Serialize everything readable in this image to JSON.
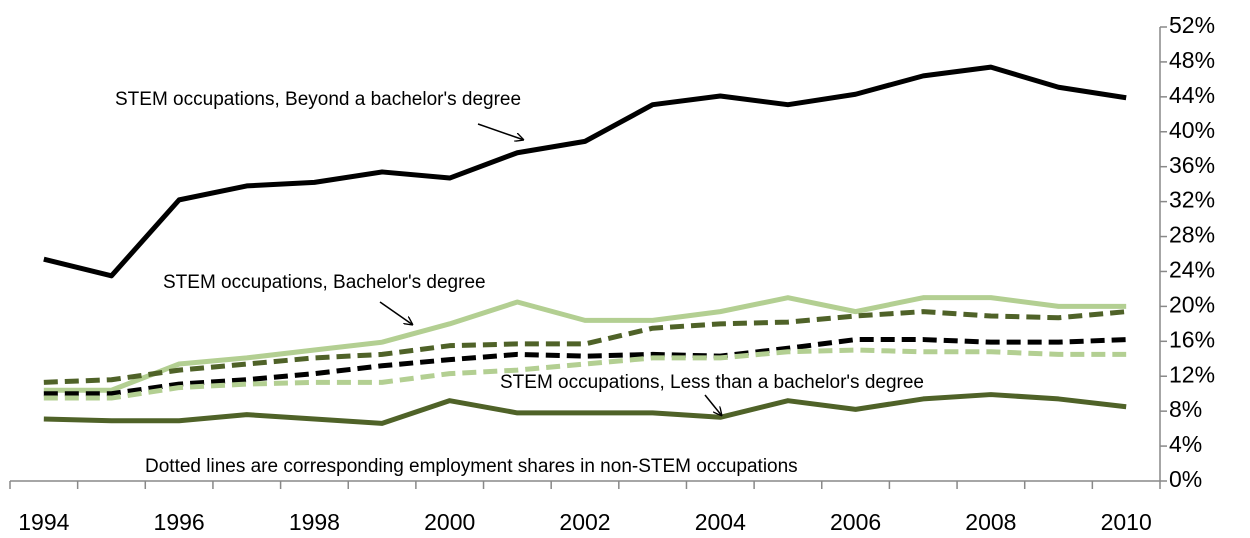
{
  "chart_data": {
    "type": "line",
    "categories": [
      "1994",
      null,
      "1996",
      null,
      "1998",
      null,
      "2000",
      null,
      "2002",
      null,
      "2004",
      null,
      "2006",
      null,
      "2008",
      null,
      "2010"
    ],
    "series": [
      {
        "color": "#000000",
        "style": "solid",
        "values": [
          25.4,
          23.5,
          32.2,
          33.8,
          34.2,
          35.4,
          34.7,
          37.6,
          38.9,
          43.1,
          44.1,
          43.1,
          44.3,
          46.4,
          47.4,
          45.1,
          43.9
        ]
      },
      {
        "color": "#b3cf92",
        "style": "solid",
        "values": [
          10.4,
          10.4,
          13.4,
          14.1,
          15,
          15.9,
          18,
          20.5,
          18.4,
          18.4,
          19.4,
          21,
          19.4,
          21,
          21,
          20,
          20
        ]
      },
      {
        "color": "#4f6228",
        "style": "solid",
        "values": [
          7.1,
          6.9,
          6.9,
          7.6,
          7.1,
          6.6,
          9.2,
          7.8,
          7.8,
          7.8,
          7.3,
          9.2,
          8.2,
          9.4,
          9.9,
          9.4,
          8.5
        ]
      },
      {
        "color": "#4f6228",
        "style": "dashed",
        "values": [
          11.3,
          11.6,
          12.7,
          13.4,
          14.1,
          14.5,
          15.5,
          15.7,
          15.7,
          17.5,
          18,
          18.2,
          18.9,
          19.4,
          18.9,
          18.7,
          19.4
        ]
      },
      {
        "color": "#000000",
        "style": "dashed",
        "values": [
          10,
          10,
          11.1,
          11.6,
          12.3,
          13.2,
          13.9,
          14.5,
          14.3,
          14.5,
          14.3,
          15.2,
          16.2,
          16.2,
          15.9,
          15.9,
          16.2
        ]
      },
      {
        "color": "#b3cf92",
        "style": "dashed",
        "values": [
          9.5,
          9.5,
          10.7,
          11.1,
          11.3,
          11.3,
          12.3,
          12.7,
          13.4,
          14.1,
          14.1,
          14.8,
          15,
          14.8,
          14.8,
          14.5,
          14.5
        ]
      }
    ],
    "annotations": [
      "STEM occupations, Beyond a bachelor's degree",
      "STEM occupations, Bachelor's degree",
      "STEM occupations, Less than a bachelor's degree",
      "Dotted lines are corresponding employment shares in non-STEM occupations"
    ],
    "ylim": [
      0,
      52
    ],
    "yticks": [
      {
        "value": 0,
        "label": "0%"
      },
      {
        "value": 4,
        "label": "4%"
      },
      {
        "value": 8,
        "label": "8%"
      },
      {
        "value": 12,
        "label": "12%"
      },
      {
        "value": 16,
        "label": "16%"
      },
      {
        "value": 20,
        "label": "20%"
      },
      {
        "value": 24,
        "label": "24%"
      },
      {
        "value": 28,
        "label": "28%"
      },
      {
        "value": 32,
        "label": "32%"
      },
      {
        "value": 36,
        "label": "36%"
      },
      {
        "value": 40,
        "label": "40%"
      },
      {
        "value": 44,
        "label": "44%"
      },
      {
        "value": 48,
        "label": "48%"
      },
      {
        "value": 52,
        "label": "52%"
      }
    ],
    "yaxis_side": "right",
    "grid": false
  }
}
